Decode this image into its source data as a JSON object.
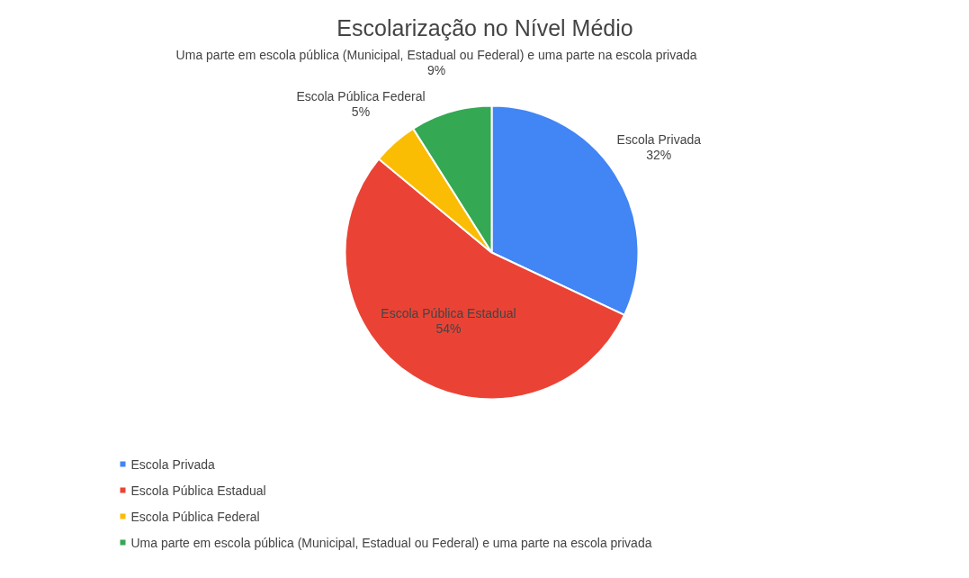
{
  "chart_data": {
    "type": "pie",
    "title": "Escolarização no Nível Médio",
    "categories": [
      "Escola Privada",
      "Escola Pública Estadual",
      "Escola Pública Federal",
      "Uma parte em escola pública (Municipal, Estadual ou Federal) e uma parte na escola privada"
    ],
    "values": [
      32,
      54,
      5,
      9
    ],
    "value_labels": [
      "32%",
      "54%",
      "5%",
      "9%"
    ],
    "colors": [
      "#4285f4",
      "#ea4335",
      "#fbbc04",
      "#34a853"
    ],
    "legend": "bottom"
  }
}
